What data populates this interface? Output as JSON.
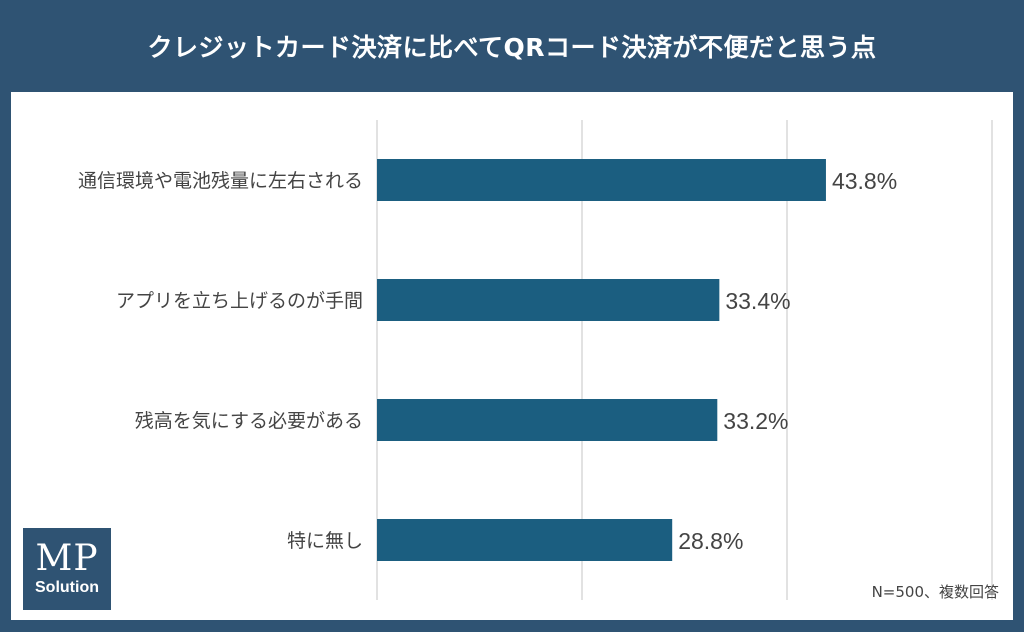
{
  "chart_data": {
    "type": "bar",
    "orientation": "horizontal",
    "title": "クレジットカード決済に比べてQRコード決済が不便だと思う点",
    "categories": [
      "通信環境や電池残量に左右される",
      "アプリを立ち上げるのが手間",
      "残高を気にする必要がある",
      "特に無し"
    ],
    "values": [
      43.8,
      33.4,
      33.2,
      28.8
    ],
    "data_labels": [
      "43.8%",
      "33.4%",
      "33.2%",
      "28.8%"
    ],
    "xlim": [
      0,
      30
    ],
    "grid": true,
    "bar_color": "#1b5e80",
    "note": "N=500、複数回答"
  },
  "logo": {
    "mp": "MP",
    "solution": "Solution"
  },
  "colors": {
    "frame": "#2f5373",
    "bar": "#1b5e80",
    "grid": "#d9d9d9",
    "text": "#444444"
  }
}
